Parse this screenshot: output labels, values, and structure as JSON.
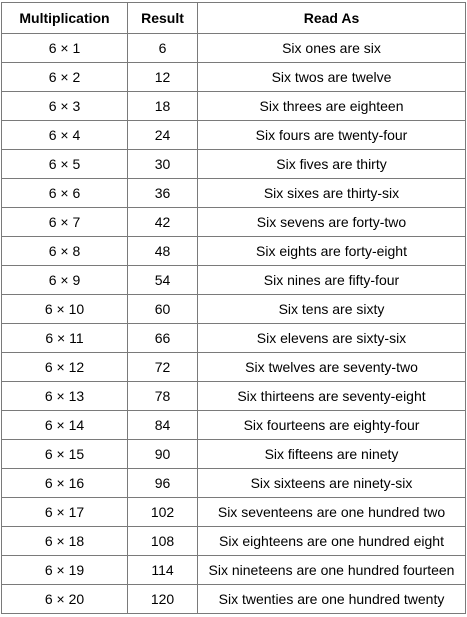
{
  "table": {
    "headers": [
      "Multiplication",
      "Result",
      "Read As"
    ],
    "rows": [
      [
        "6 × 1",
        "6",
        "Six ones are six"
      ],
      [
        "6 × 2",
        "12",
        "Six twos are twelve"
      ],
      [
        "6 × 3",
        "18",
        "Six threes are eighteen"
      ],
      [
        "6 × 4",
        "24",
        "Six fours are twenty-four"
      ],
      [
        "6 × 5",
        "30",
        "Six fives are thirty"
      ],
      [
        "6 × 6",
        "36",
        "Six sixes are thirty-six"
      ],
      [
        "6 × 7",
        "42",
        "Six sevens are forty-two"
      ],
      [
        "6 × 8",
        "48",
        "Six eights are forty-eight"
      ],
      [
        "6 × 9",
        "54",
        "Six nines are fifty-four"
      ],
      [
        "6 × 10",
        "60",
        "Six tens are sixty"
      ],
      [
        "6 × 11",
        "66",
        "Six elevens are sixty-six"
      ],
      [
        "6 × 12",
        "72",
        "Six twelves are seventy-two"
      ],
      [
        "6 × 13",
        "78",
        "Six thirteens are seventy-eight"
      ],
      [
        "6 × 14",
        "84",
        "Six fourteens are eighty-four"
      ],
      [
        "6 × 15",
        "90",
        "Six fifteens are ninety"
      ],
      [
        "6 × 16",
        "96",
        "Six sixteens are ninety-six"
      ],
      [
        "6 × 17",
        "102",
        "Six seventeens are one hundred two"
      ],
      [
        "6 × 18",
        "108",
        "Six eighteens are one hundred eight"
      ],
      [
        "6 × 19",
        "114",
        "Six nineteens are one hundred fourteen"
      ],
      [
        "6 × 20",
        "120",
        "Six twenties are one hundred twenty"
      ]
    ]
  },
  "colors": {
    "border": "#7a7a7a",
    "text": "#000000",
    "background": "#ffffff"
  }
}
